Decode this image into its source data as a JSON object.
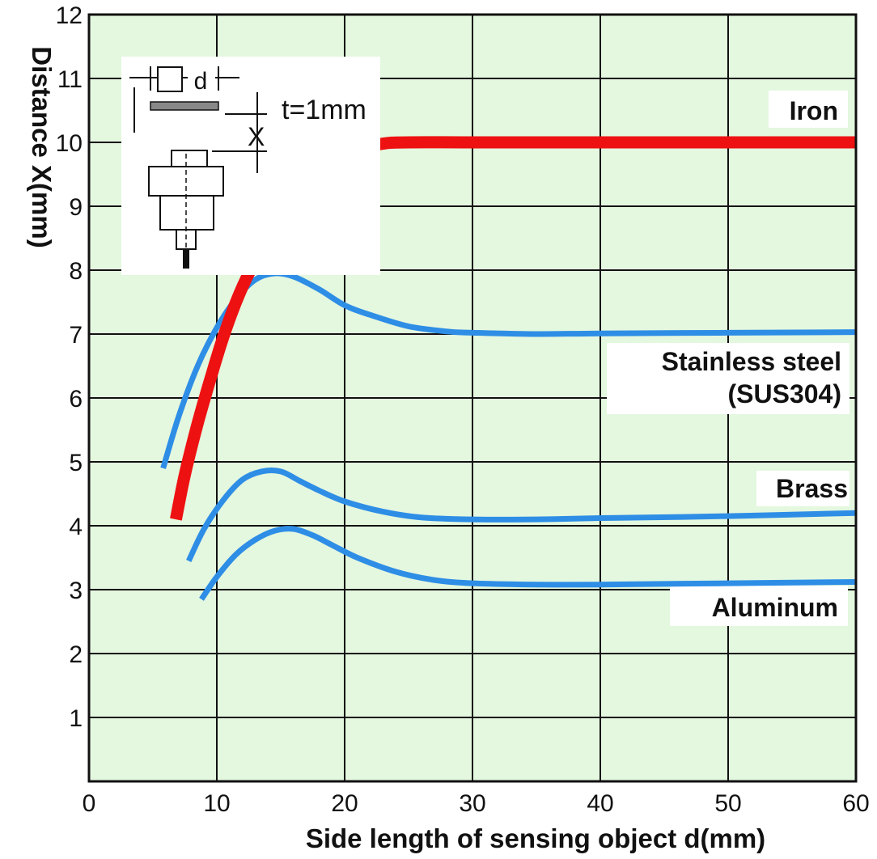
{
  "chart_data": {
    "type": "line",
    "xlabel": "Side length of sensing object d(mm)",
    "ylabel": "Distance X(mm)",
    "xlim": [
      0,
      60
    ],
    "ylim": [
      0,
      12
    ],
    "x_ticks": [
      "0",
      "10",
      "20",
      "30",
      "40",
      "50",
      "60"
    ],
    "y_ticks": [
      "1",
      "2",
      "3",
      "4",
      "5",
      "6",
      "7",
      "8",
      "9",
      "10",
      "11",
      "12"
    ],
    "grid": true,
    "background_color": "#e4f7df",
    "series": [
      {
        "name": "Iron",
        "color": "#ee1111",
        "x": [
          6.8,
          7.5,
          8.5,
          9.5,
          10.5,
          11.5,
          12.5,
          14,
          15.5,
          17,
          19,
          21,
          23,
          25,
          30,
          40,
          50,
          60
        ],
        "y": [
          4.1,
          4.8,
          5.6,
          6.3,
          6.95,
          7.5,
          7.95,
          8.5,
          8.95,
          9.3,
          9.65,
          9.88,
          9.98,
          10.0,
          10.0,
          10.0,
          10.0,
          10.0
        ]
      },
      {
        "name": "Stainless steel",
        "name_line2": "(SUS304)",
        "color": "#2e8ee6",
        "x": [
          5.8,
          7,
          8.5,
          10,
          11.5,
          13,
          14.5,
          16,
          18,
          20,
          22,
          25,
          28,
          30,
          35,
          40,
          50,
          60
        ],
        "y": [
          4.9,
          5.7,
          6.5,
          7.1,
          7.55,
          7.85,
          7.95,
          7.9,
          7.7,
          7.45,
          7.3,
          7.12,
          7.04,
          7.02,
          7.0,
          7.01,
          7.02,
          7.03
        ]
      },
      {
        "name": "Brass",
        "color": "#2e8ee6",
        "x": [
          7.8,
          9,
          10.5,
          12,
          13.5,
          15,
          16.5,
          18,
          20,
          23,
          26,
          30,
          35,
          40,
          50,
          60
        ],
        "y": [
          3.45,
          3.95,
          4.4,
          4.72,
          4.85,
          4.85,
          4.7,
          4.55,
          4.38,
          4.22,
          4.13,
          4.1,
          4.1,
          4.12,
          4.15,
          4.2
        ]
      },
      {
        "name": "Aluminum",
        "color": "#2e8ee6",
        "x": [
          8.8,
          10,
          11.5,
          13,
          14.5,
          16,
          17.5,
          19,
          21,
          24,
          27,
          30,
          35,
          40,
          50,
          60
        ],
        "y": [
          2.85,
          3.2,
          3.55,
          3.78,
          3.92,
          3.95,
          3.85,
          3.7,
          3.5,
          3.28,
          3.15,
          3.1,
          3.08,
          3.08,
          3.1,
          3.12
        ]
      }
    ]
  },
  "inset": {
    "d_label": "d",
    "t_label": "t=1mm",
    "x_label": "X"
  }
}
